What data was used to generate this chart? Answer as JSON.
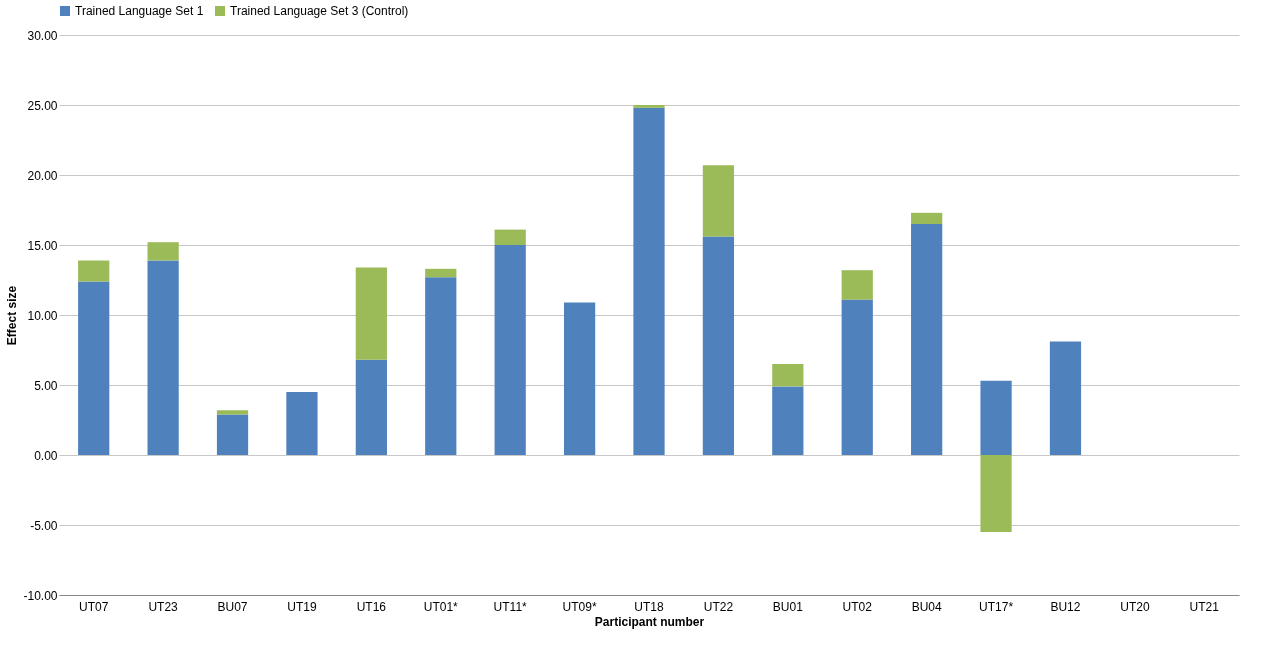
{
  "chart_data": {
    "type": "bar",
    "stacked": true,
    "xlabel": "Participant number",
    "ylabel": "Effect size",
    "categories": [
      "UT07",
      "UT23",
      "BU07",
      "UT19",
      "UT16",
      "UT01*",
      "UT11*",
      "UT09*",
      "UT18",
      "UT22",
      "BU01",
      "UT02",
      "BU04",
      "UT17*",
      "BU12",
      "UT20",
      "UT21"
    ],
    "series": [
      {
        "name": "Trained Language Set 1",
        "color": "#4f81bd",
        "values": [
          12.4,
          13.9,
          2.9,
          4.5,
          6.8,
          12.7,
          15.0,
          10.9,
          24.8,
          15.6,
          4.9,
          11.1,
          16.5,
          5.3,
          8.1,
          0,
          0
        ]
      },
      {
        "name": "Trained Language Set 3 (Control)",
        "color": "#9bbb59",
        "values": [
          1.5,
          1.3,
          0.3,
          0,
          6.6,
          0.6,
          1.1,
          0,
          0.2,
          5.1,
          1.6,
          2.1,
          0.8,
          -5.5,
          0,
          0,
          0
        ]
      }
    ],
    "ylim": [
      -10,
      30
    ],
    "yticks": [
      {
        "value": -10,
        "label": "-10.00"
      },
      {
        "value": -5,
        "label": "-5.00"
      },
      {
        "value": 0,
        "label": "0.00"
      },
      {
        "value": 5,
        "label": "5.00"
      },
      {
        "value": 10,
        "label": "10.00"
      },
      {
        "value": 15,
        "label": "15.00"
      },
      {
        "value": 20,
        "label": "20.00"
      },
      {
        "value": 25,
        "label": "25.00"
      },
      {
        "value": 30,
        "label": "30.00"
      }
    ],
    "grid": "y",
    "legend": "top"
  }
}
